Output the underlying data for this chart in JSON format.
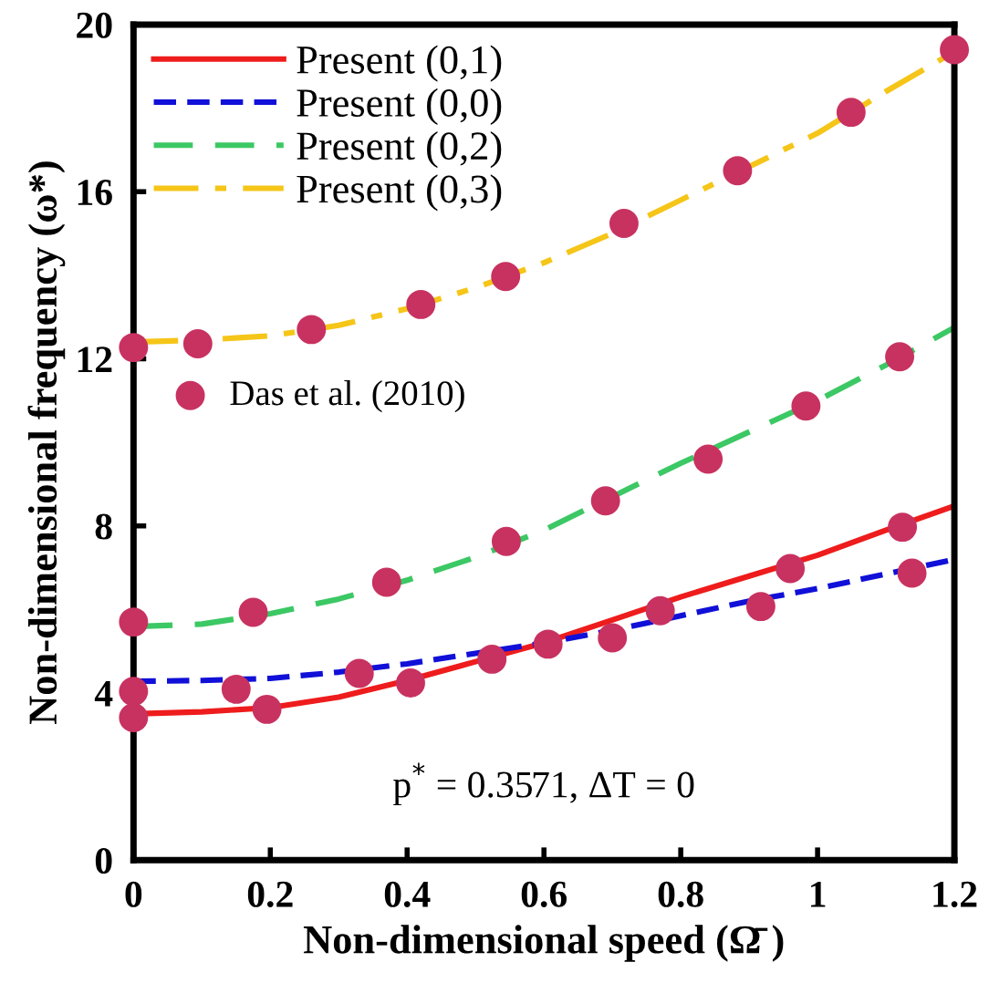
{
  "chart_data": {
    "type": "line",
    "xlabel": "Non-dimensional speed (Ω̄ )",
    "ylabel": "Non-dimensional frequency (ω*)",
    "xlim": [
      0,
      1.2
    ],
    "ylim": [
      0,
      20
    ],
    "xticks": [
      0,
      0.2,
      0.4,
      0.6,
      0.8,
      1,
      1.2
    ],
    "yticks": [
      0,
      4,
      8,
      12,
      16,
      20
    ],
    "grid": false,
    "legend": "top left",
    "annotations": [
      "p$^{*}$ = 0.3571, ΔT = 0"
    ],
    "series": [
      {
        "name": "Present (0,1)",
        "color": "#ee1c1c",
        "line_style": "solid",
        "marker": "none",
        "x": [
          0,
          0.1,
          0.2,
          0.3,
          0.4,
          0.5,
          0.6,
          0.7,
          0.8,
          0.9,
          1.0,
          1.1,
          1.2
        ],
        "values": [
          3.5,
          3.55,
          3.65,
          3.9,
          4.3,
          4.75,
          5.2,
          5.75,
          6.3,
          6.8,
          7.3,
          7.9,
          8.48
        ]
      },
      {
        "name": "Present (0,0)",
        "color": "#1010d8",
        "line_style": "dashed",
        "marker": "none",
        "x": [
          0,
          0.1,
          0.2,
          0.3,
          0.4,
          0.5,
          0.6,
          0.7,
          0.8,
          0.9,
          1.0,
          1.1,
          1.2
        ],
        "values": [
          4.28,
          4.3,
          4.35,
          4.5,
          4.7,
          4.95,
          5.2,
          5.5,
          5.85,
          6.2,
          6.5,
          6.85,
          7.2
        ]
      },
      {
        "name": "Present (0,2)",
        "color": "#3cc864",
        "line_style": "dashed",
        "marker": "none",
        "x": [
          0,
          0.1,
          0.2,
          0.3,
          0.4,
          0.5,
          0.6,
          0.7,
          0.8,
          0.9,
          1.0,
          1.1,
          1.2
        ],
        "values": [
          5.59,
          5.65,
          5.9,
          6.25,
          6.7,
          7.25,
          7.9,
          8.7,
          9.5,
          10.25,
          11.0,
          11.85,
          12.75
        ]
      },
      {
        "name": "Present (0,3)",
        "color": "#f5c518",
        "line_style": "dashdot",
        "marker": "none",
        "x": [
          0,
          0.1,
          0.2,
          0.3,
          0.4,
          0.5,
          0.6,
          0.7,
          0.8,
          0.9,
          1.0,
          1.1,
          1.2
        ],
        "values": [
          12.4,
          12.45,
          12.55,
          12.8,
          13.2,
          13.7,
          14.3,
          15.0,
          15.8,
          16.6,
          17.4,
          18.4,
          19.35
        ]
      },
      {
        "name": "Das et al. (2010)",
        "type": "scatter",
        "color": "#c83260",
        "marker": "circle",
        "x": [
          0,
          0.094,
          0.26,
          0.42,
          0.544,
          0.717,
          0.883,
          1.049,
          1.2,
          0,
          0.175,
          0.37,
          0.545,
          0.69,
          0.84,
          0.983,
          1.12,
          0,
          0.195,
          0.405,
          0.524,
          0.606,
          0.77,
          0.96,
          1.124,
          0,
          0.15,
          0.33,
          0.7,
          0.917,
          1.138
        ],
        "values": [
          12.27,
          12.36,
          12.7,
          13.3,
          13.97,
          15.24,
          16.5,
          17.9,
          19.4,
          5.7,
          5.93,
          6.65,
          7.63,
          8.6,
          9.6,
          10.87,
          12.05,
          3.41,
          3.61,
          4.24,
          4.81,
          5.17,
          5.97,
          6.98,
          7.97,
          4.04,
          4.09,
          4.47,
          5.32,
          6.07,
          6.87
        ]
      }
    ]
  }
}
